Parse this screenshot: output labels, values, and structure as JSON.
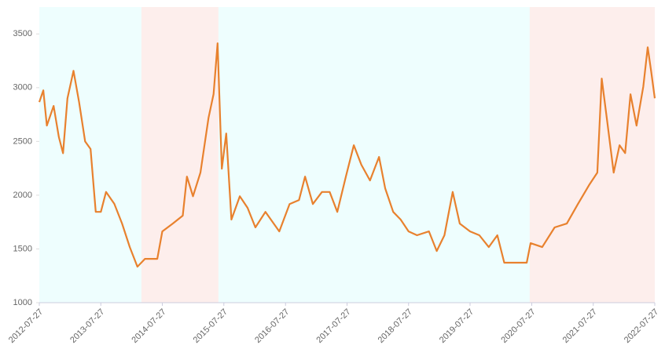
{
  "chart_data": {
    "type": "line",
    "x": [
      "2012-07-27",
      "2012-08-20",
      "2012-09-10",
      "2012-10-20",
      "2012-11-20",
      "2012-12-15",
      "2013-01-10",
      "2013-02-15",
      "2013-03-20",
      "2013-04-25",
      "2013-05-27",
      "2013-06-27",
      "2013-07-27",
      "2013-08-27",
      "2013-10-15",
      "2013-11-30",
      "2014-01-15",
      "2014-03-01",
      "2014-04-15",
      "2014-06-27",
      "2014-07-27",
      "2014-09-27",
      "2014-11-25",
      "2014-12-20",
      "2015-01-25",
      "2015-03-10",
      "2015-04-27",
      "2015-05-27",
      "2015-06-20",
      "2015-07-15",
      "2015-08-10",
      "2015-09-10",
      "2015-10-30",
      "2015-12-15",
      "2016-01-30",
      "2016-03-30",
      "2016-06-20",
      "2016-08-20",
      "2016-10-15",
      "2016-11-20",
      "2017-01-05",
      "2017-02-28",
      "2017-04-15",
      "2017-05-30",
      "2017-07-20",
      "2017-09-05",
      "2017-10-20",
      "2017-12-10",
      "2018-02-02",
      "2018-03-10",
      "2018-04-27",
      "2018-06-10",
      "2018-07-27",
      "2018-09-15",
      "2018-11-25",
      "2019-01-10",
      "2019-02-25",
      "2019-04-15",
      "2019-05-27",
      "2019-07-27",
      "2019-09-20",
      "2019-11-15",
      "2020-01-05",
      "2020-02-15",
      "2020-04-15",
      "2020-06-27",
      "2020-07-20",
      "2020-09-27",
      "2020-12-10",
      "2021-02-20",
      "2021-04-27",
      "2021-07-05",
      "2021-08-20",
      "2021-09-15",
      "2021-10-15",
      "2021-11-25",
      "2021-12-30",
      "2022-02-01",
      "2022-03-05",
      "2022-04-10",
      "2022-05-20",
      "2022-06-15",
      "2022-07-05",
      "2022-07-27"
    ],
    "series": [
      {
        "color": "#e8812e",
        "values": [
          2866,
          2975,
          2647,
          2830,
          2540,
          2390,
          2900,
          3157,
          2866,
          2500,
          2430,
          1845,
          1845,
          2030,
          1920,
          1736,
          1517,
          1335,
          1408,
          1408,
          1663,
          1736,
          1810,
          2173,
          1990,
          2210,
          2720,
          2940,
          3413,
          2246,
          2574,
          1773,
          1990,
          1882,
          1700,
          1845,
          1663,
          1918,
          1955,
          2173,
          1918,
          2030,
          2030,
          1845,
          2173,
          2465,
          2283,
          2137,
          2356,
          2064,
          1845,
          1773,
          1663,
          1627,
          1663,
          1481,
          1627,
          2030,
          1736,
          1663,
          1627,
          1517,
          1627,
          1372,
          1372,
          1372,
          1554,
          1517,
          1700,
          1736,
          1918,
          2101,
          2210,
          3085,
          2720,
          2210,
          2465,
          2392,
          2939,
          2647,
          3011,
          3376,
          3157,
          2902
        ]
      }
    ],
    "xlim": [
      "2012-07-27",
      "2022-07-27"
    ],
    "xticks": [
      "2012-07-27",
      "2013-07-27",
      "2014-07-27",
      "2015-07-27",
      "2016-07-27",
      "2017-07-27",
      "2018-07-27",
      "2019-07-27",
      "2020-07-27",
      "2021-07-27",
      "2022-07-27"
    ],
    "ylim": [
      1000,
      3750
    ],
    "yticks": [
      1000,
      1500,
      2000,
      2500,
      3000,
      3500
    ],
    "regions": [
      {
        "start": "2012-07-27",
        "end": "2014-03-25",
        "color": "#eefefe"
      },
      {
        "start": "2014-03-25",
        "end": "2015-06-25",
        "color": "#fdeeec"
      },
      {
        "start": "2015-06-25",
        "end": "2020-07-15",
        "color": "#eefefe"
      },
      {
        "start": "2020-07-15",
        "end": "2022-07-27",
        "color": "#fdeeec"
      }
    ]
  }
}
